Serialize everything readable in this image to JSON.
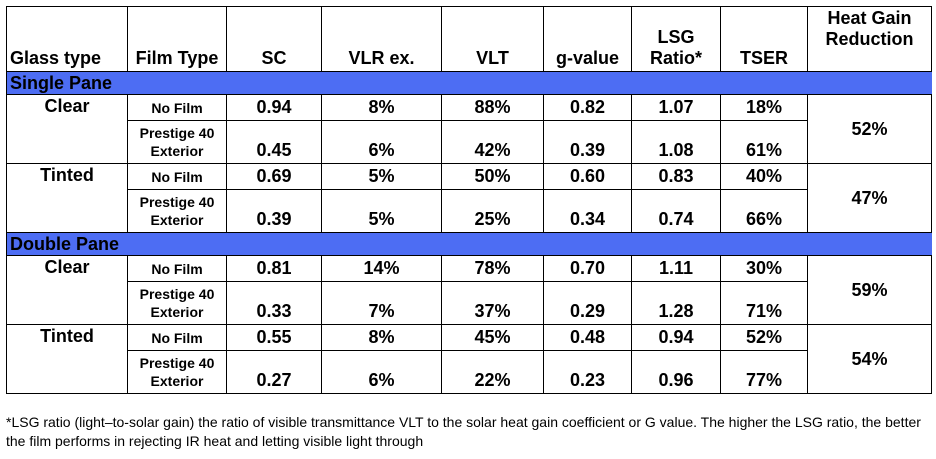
{
  "headers": {
    "glass_type": "Glass type",
    "film_type": "Film Type",
    "sc": "SC",
    "vlr_ex": "VLR ex.",
    "vlt": "VLT",
    "g_value": "g-value",
    "lsg_ratio": "LSG Ratio*",
    "tser": "TSER",
    "heat_gain_reduction": "Heat Gain Reduction"
  },
  "sections": [
    {
      "name": "Single Pane",
      "groups": [
        {
          "glass": "Clear",
          "heat_gain_reduction": "52%",
          "rows": [
            {
              "film": "No Film",
              "sc": "0.94",
              "vlr": "8%",
              "vlt": "88%",
              "g": "0.82",
              "lsg": "1.07",
              "tser": "18%"
            },
            {
              "film": "Prestige 40 Exterior",
              "sc": "0.45",
              "vlr": "6%",
              "vlt": "42%",
              "g": "0.39",
              "lsg": "1.08",
              "tser": "61%"
            }
          ]
        },
        {
          "glass": "Tinted",
          "heat_gain_reduction": "47%",
          "rows": [
            {
              "film": "No Film",
              "sc": "0.69",
              "vlr": "5%",
              "vlt": "50%",
              "g": "0.60",
              "lsg": "0.83",
              "tser": "40%"
            },
            {
              "film": "Prestige 40 Exterior",
              "sc": "0.39",
              "vlr": "5%",
              "vlt": "25%",
              "g": "0.34",
              "lsg": "0.74",
              "tser": "66%"
            }
          ]
        }
      ]
    },
    {
      "name": "Double Pane",
      "groups": [
        {
          "glass": "Clear",
          "heat_gain_reduction": "59%",
          "rows": [
            {
              "film": "No Film",
              "sc": "0.81",
              "vlr": "14%",
              "vlt": "78%",
              "g": "0.70",
              "lsg": "1.11",
              "tser": "30%"
            },
            {
              "film": "Prestige 40 Exterior",
              "sc": "0.33",
              "vlr": "7%",
              "vlt": "37%",
              "g": "0.29",
              "lsg": "1.28",
              "tser": "71%"
            }
          ]
        },
        {
          "glass": "Tinted",
          "heat_gain_reduction": "54%",
          "rows": [
            {
              "film": "No Film",
              "sc": "0.55",
              "vlr": "8%",
              "vlt": "45%",
              "g": "0.48",
              "lsg": "0.94",
              "tser": "52%"
            },
            {
              "film": "Prestige 40 Exterior",
              "sc": "0.27",
              "vlr": "6%",
              "vlt": "22%",
              "g": "0.23",
              "lsg": "0.96",
              "tser": "77%"
            }
          ]
        }
      ]
    }
  ],
  "footnote": "*LSG ratio (light–to-solar gain) the ratio of visible transmittance VLT to the solar heat gain coefficient or G value. The higher the LSG ratio, the better the film performs in rejecting IR heat and letting visible light through",
  "colors": {
    "section_band": "#4d6df3",
    "text": "#000000",
    "border": "#000000"
  }
}
